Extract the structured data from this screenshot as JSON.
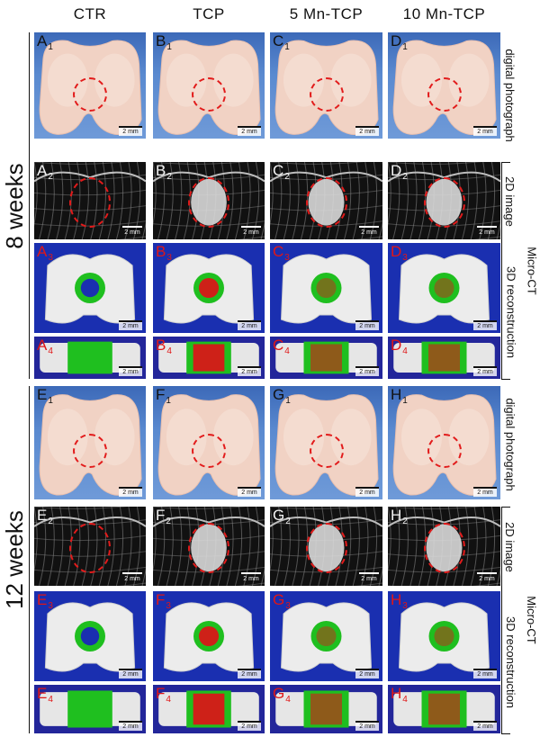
{
  "columns": [
    "CTR",
    "TCP",
    "5 Mn-TCP",
    "10 Mn-TCP"
  ],
  "groups": [
    {
      "label": "8 weeks",
      "rows": [
        {
          "type": "digital photograph",
          "panels": [
            {
              "letter": "A",
              "sub": "1"
            },
            {
              "letter": "B",
              "sub": "1"
            },
            {
              "letter": "C",
              "sub": "1"
            },
            {
              "letter": "D",
              "sub": "1"
            }
          ]
        },
        {
          "type": "2D image",
          "panels": [
            {
              "letter": "A",
              "sub": "2"
            },
            {
              "letter": "B",
              "sub": "2"
            },
            {
              "letter": "C",
              "sub": "2"
            },
            {
              "letter": "D",
              "sub": "2"
            }
          ]
        },
        {
          "type": "3D reconstruction",
          "panels": [
            {
              "letter": "A",
              "sub": "3"
            },
            {
              "letter": "B",
              "sub": "3"
            },
            {
              "letter": "C",
              "sub": "3"
            },
            {
              "letter": "D",
              "sub": "3"
            }
          ]
        },
        {
          "type": "3D reconstruction",
          "panels": [
            {
              "letter": "A",
              "sub": "4"
            },
            {
              "letter": "B",
              "sub": "4"
            },
            {
              "letter": "C",
              "sub": "4"
            },
            {
              "letter": "D",
              "sub": "4"
            }
          ]
        }
      ]
    },
    {
      "label": "12 weeks",
      "rows": [
        {
          "type": "digital photograph",
          "panels": [
            {
              "letter": "E",
              "sub": "1"
            },
            {
              "letter": "F",
              "sub": "1"
            },
            {
              "letter": "G",
              "sub": "1"
            },
            {
              "letter": "H",
              "sub": "1"
            }
          ]
        },
        {
          "type": "2D image",
          "panels": [
            {
              "letter": "E",
              "sub": "2"
            },
            {
              "letter": "F",
              "sub": "2"
            },
            {
              "letter": "G",
              "sub": "2"
            },
            {
              "letter": "H",
              "sub": "2"
            }
          ]
        },
        {
          "type": "3D reconstruction",
          "panels": [
            {
              "letter": "E",
              "sub": "3"
            },
            {
              "letter": "F",
              "sub": "3"
            },
            {
              "letter": "G",
              "sub": "3"
            },
            {
              "letter": "H",
              "sub": "3"
            }
          ]
        },
        {
          "type": "3D reconstruction",
          "panels": [
            {
              "letter": "E",
              "sub": "4"
            },
            {
              "letter": "F",
              "sub": "4"
            },
            {
              "letter": "G",
              "sub": "4"
            },
            {
              "letter": "H",
              "sub": "4"
            }
          ]
        }
      ]
    }
  ],
  "row_labels": {
    "photo": "digital photograph",
    "image2d": "2D image",
    "microct": "Micro-CT",
    "recon3d": "3D reconstruction"
  },
  "scale_bar": "2 mm",
  "colors": {
    "defect_circle": "#e21b1b",
    "new_bone": "#1fbf1f",
    "material": "#d81818",
    "ct_background": "#1a2fb0",
    "photo_background": "#4a78c4"
  }
}
